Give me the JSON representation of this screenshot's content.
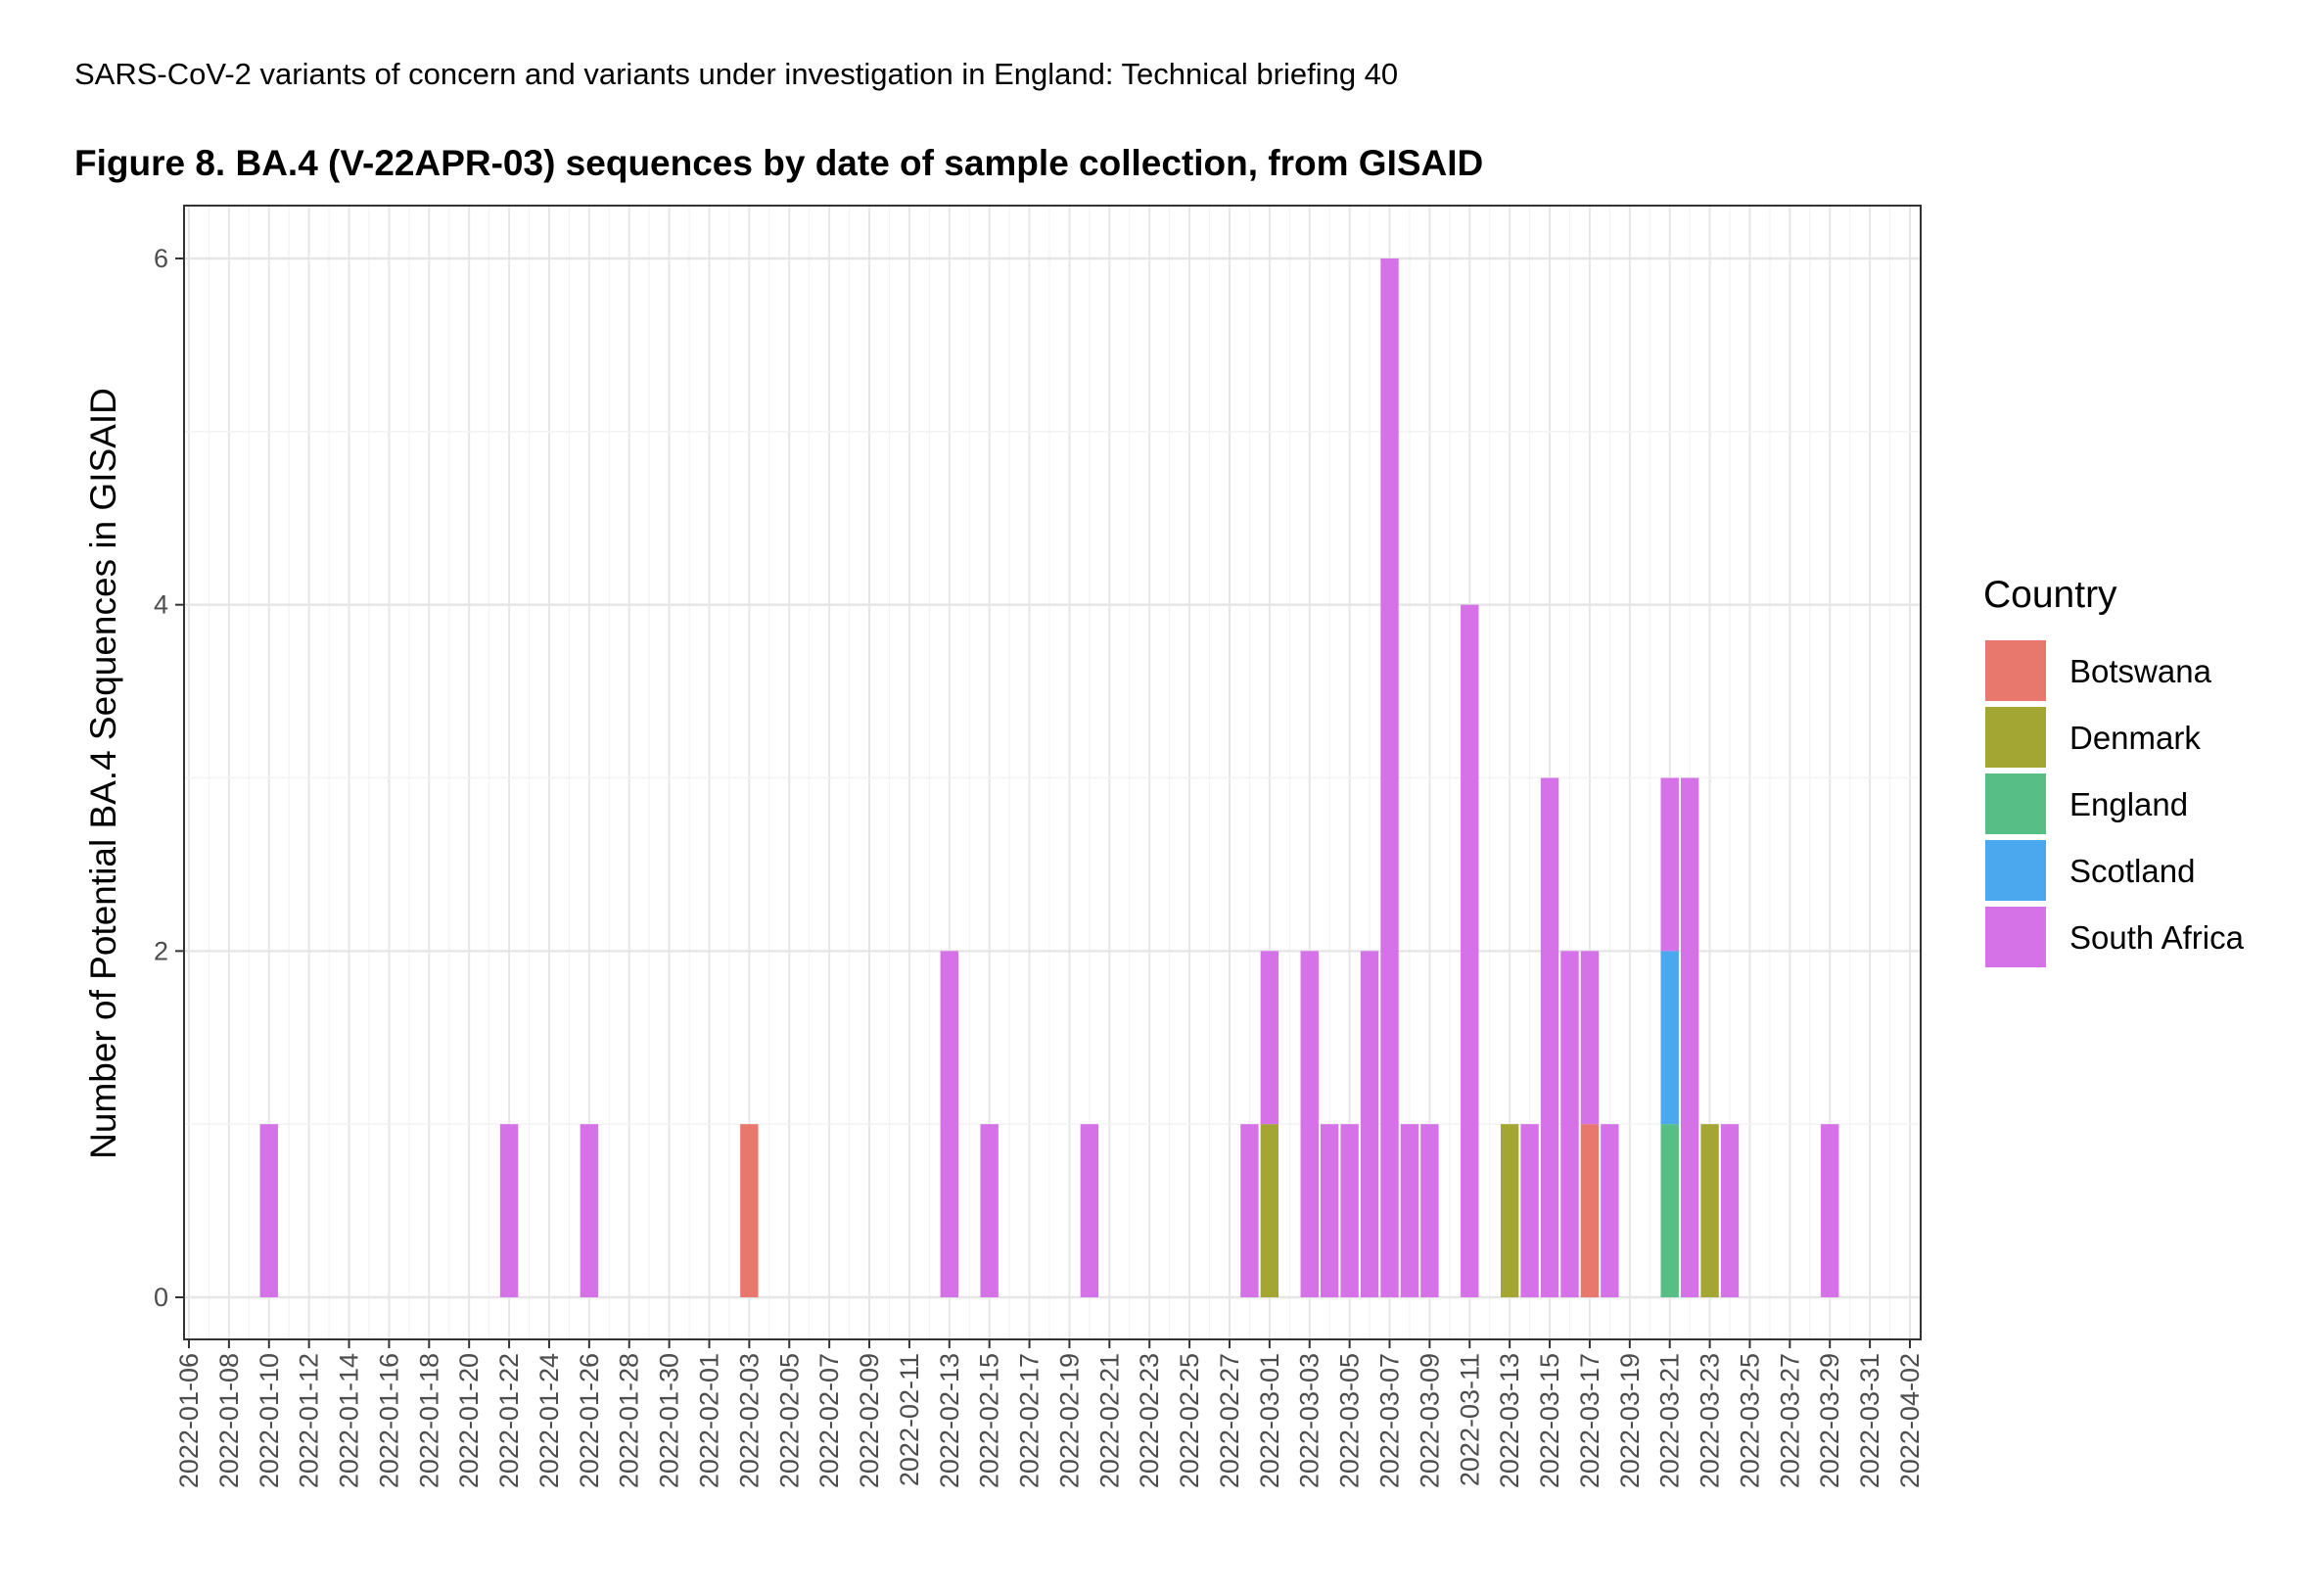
{
  "header": {
    "text": "SARS-CoV-2 variants of concern and variants under investigation in England: Technical briefing 40"
  },
  "figure": {
    "title": "Figure 8. BA.4 (V-22APR-03) sequences by date of sample collection, from GISAID"
  },
  "chart_data": {
    "type": "bar",
    "stacked": true,
    "ylabel": "Number of Potential BA.4 Sequences in GISAID",
    "xlabel": "",
    "ylim": [
      0,
      6.2
    ],
    "yticks": [
      0,
      2,
      4,
      6
    ],
    "xrange": [
      "2022-01-06",
      "2022-04-02"
    ],
    "xticks": [
      "2022-01-06",
      "2022-01-08",
      "2022-01-10",
      "2022-01-12",
      "2022-01-14",
      "2022-01-16",
      "2022-01-18",
      "2022-01-20",
      "2022-01-22",
      "2022-01-24",
      "2022-01-26",
      "2022-01-28",
      "2022-01-30",
      "2022-02-01",
      "2022-02-03",
      "2022-02-05",
      "2022-02-07",
      "2022-02-09",
      "2022-02-11",
      "2022-02-13",
      "2022-02-15",
      "2022-02-17",
      "2022-02-19",
      "2022-02-21",
      "2022-02-23",
      "2022-02-25",
      "2022-02-27",
      "2022-03-01",
      "2022-03-03",
      "2022-03-05",
      "2022-03-07",
      "2022-03-09",
      "2022-03-11",
      "2022-03-13",
      "2022-03-15",
      "2022-03-17",
      "2022-03-19",
      "2022-03-21",
      "2022-03-23",
      "2022-03-25",
      "2022-03-27",
      "2022-03-29",
      "2022-03-31",
      "2022-04-02"
    ],
    "grid": true,
    "legend": {
      "title": "Country",
      "position": "right"
    },
    "colors": {
      "Botswana": "#E8786D",
      "Denmark": "#A3A633",
      "England": "#57BF85",
      "Scotland": "#4BA8EE",
      "South Africa": "#D672E8"
    },
    "series_order": [
      "Botswana",
      "Denmark",
      "England",
      "Scotland",
      "South Africa"
    ],
    "bars": [
      {
        "date": "2022-01-10",
        "values": {
          "South Africa": 1
        }
      },
      {
        "date": "2022-01-22",
        "values": {
          "South Africa": 1
        }
      },
      {
        "date": "2022-01-26",
        "values": {
          "South Africa": 1
        }
      },
      {
        "date": "2022-02-03",
        "values": {
          "Botswana": 1
        }
      },
      {
        "date": "2022-02-13",
        "values": {
          "South Africa": 2
        }
      },
      {
        "date": "2022-02-15",
        "values": {
          "South Africa": 1
        }
      },
      {
        "date": "2022-02-20",
        "values": {
          "South Africa": 1
        }
      },
      {
        "date": "2022-02-28",
        "values": {
          "South Africa": 1
        }
      },
      {
        "date": "2022-03-01",
        "values": {
          "Denmark": 1,
          "South Africa": 1
        }
      },
      {
        "date": "2022-03-03",
        "values": {
          "South Africa": 2
        }
      },
      {
        "date": "2022-03-04",
        "values": {
          "South Africa": 1
        }
      },
      {
        "date": "2022-03-05",
        "values": {
          "South Africa": 1
        }
      },
      {
        "date": "2022-03-06",
        "values": {
          "South Africa": 2
        }
      },
      {
        "date": "2022-03-07",
        "values": {
          "South Africa": 6
        }
      },
      {
        "date": "2022-03-08",
        "values": {
          "South Africa": 1
        }
      },
      {
        "date": "2022-03-09",
        "values": {
          "South Africa": 1
        }
      },
      {
        "date": "2022-03-11",
        "values": {
          "South Africa": 4
        }
      },
      {
        "date": "2022-03-13",
        "values": {
          "Denmark": 1
        }
      },
      {
        "date": "2022-03-14",
        "values": {
          "South Africa": 1
        }
      },
      {
        "date": "2022-03-15",
        "values": {
          "South Africa": 3
        }
      },
      {
        "date": "2022-03-16",
        "values": {
          "South Africa": 2
        }
      },
      {
        "date": "2022-03-17",
        "values": {
          "Botswana": 1,
          "South Africa": 1
        }
      },
      {
        "date": "2022-03-18",
        "values": {
          "South Africa": 1
        }
      },
      {
        "date": "2022-03-21",
        "values": {
          "England": 1,
          "Scotland": 1,
          "South Africa": 1
        }
      },
      {
        "date": "2022-03-22",
        "values": {
          "South Africa": 3
        }
      },
      {
        "date": "2022-03-23",
        "values": {
          "Denmark": 1
        }
      },
      {
        "date": "2022-03-24",
        "values": {
          "South Africa": 1
        }
      },
      {
        "date": "2022-03-29",
        "values": {
          "South Africa": 1
        }
      }
    ]
  }
}
